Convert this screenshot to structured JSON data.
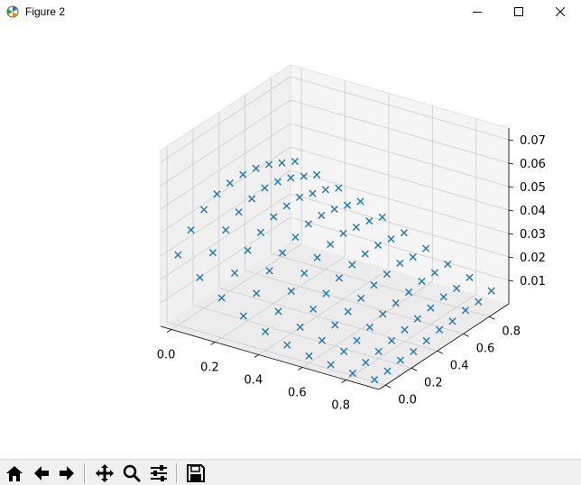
{
  "window": {
    "title": "Figure 2",
    "controls": {
      "minimize": "minimize-icon",
      "maximize": "maximize-icon",
      "close": "close-icon"
    }
  },
  "toolbar": {
    "buttons": [
      {
        "name": "home-button",
        "icon": "home-icon"
      },
      {
        "name": "back-button",
        "icon": "arrow-left-icon"
      },
      {
        "name": "forward-button",
        "icon": "arrow-right-icon"
      },
      {
        "name": "pan-button",
        "icon": "move-icon"
      },
      {
        "name": "zoom-button",
        "icon": "magnifier-icon"
      },
      {
        "name": "configure-subplots-button",
        "icon": "sliders-icon"
      },
      {
        "name": "save-button",
        "icon": "floppy-disk-icon"
      }
    ]
  },
  "colors": {
    "marker": "#1f77b4",
    "pane": "#f2f2f2",
    "grid": "#cccccc"
  },
  "chart_data": {
    "type": "scatter",
    "projection": "3d",
    "marker": "x",
    "grid": true,
    "x_ticks": [
      "0.0",
      "0.2",
      "0.4",
      "0.6",
      "0.8"
    ],
    "y_ticks": [
      "0.0",
      "0.2",
      "0.4",
      "0.6",
      "0.8"
    ],
    "z_ticks": [
      "0.01",
      "0.02",
      "0.03",
      "0.04",
      "0.05",
      "0.06",
      "0.07"
    ],
    "xlim": [
      -0.05,
      0.95
    ],
    "ylim": [
      -0.05,
      0.95
    ],
    "zlim": [
      0.0,
      0.075
    ],
    "points": [
      [
        0.0,
        0.0,
        0.03
      ],
      [
        0.0,
        0.1,
        0.037
      ],
      [
        0.0,
        0.2,
        0.042
      ],
      [
        0.0,
        0.3,
        0.045
      ],
      [
        0.0,
        0.4,
        0.046
      ],
      [
        0.0,
        0.5,
        0.046
      ],
      [
        0.0,
        0.6,
        0.045
      ],
      [
        0.0,
        0.7,
        0.043
      ],
      [
        0.0,
        0.8,
        0.04
      ],
      [
        0.0,
        0.9,
        0.037
      ],
      [
        0.1,
        0.0,
        0.023
      ],
      [
        0.1,
        0.1,
        0.03
      ],
      [
        0.1,
        0.2,
        0.036
      ],
      [
        0.1,
        0.3,
        0.04
      ],
      [
        0.1,
        0.4,
        0.042
      ],
      [
        0.1,
        0.5,
        0.043
      ],
      [
        0.1,
        0.6,
        0.042
      ],
      [
        0.1,
        0.7,
        0.04
      ],
      [
        0.1,
        0.8,
        0.037
      ],
      [
        0.1,
        0.9,
        0.034
      ],
      [
        0.2,
        0.0,
        0.017
      ],
      [
        0.2,
        0.1,
        0.024
      ],
      [
        0.2,
        0.2,
        0.03
      ],
      [
        0.2,
        0.3,
        0.034
      ],
      [
        0.2,
        0.4,
        0.037
      ],
      [
        0.2,
        0.5,
        0.038
      ],
      [
        0.2,
        0.6,
        0.038
      ],
      [
        0.2,
        0.7,
        0.036
      ],
      [
        0.2,
        0.8,
        0.034
      ],
      [
        0.2,
        0.9,
        0.031
      ],
      [
        0.3,
        0.0,
        0.012
      ],
      [
        0.3,
        0.1,
        0.018
      ],
      [
        0.3,
        0.2,
        0.024
      ],
      [
        0.3,
        0.3,
        0.028
      ],
      [
        0.3,
        0.4,
        0.031
      ],
      [
        0.3,
        0.5,
        0.033
      ],
      [
        0.3,
        0.6,
        0.033
      ],
      [
        0.3,
        0.7,
        0.032
      ],
      [
        0.3,
        0.8,
        0.03
      ],
      [
        0.3,
        0.9,
        0.028
      ],
      [
        0.4,
        0.0,
        0.008
      ],
      [
        0.4,
        0.1,
        0.013
      ],
      [
        0.4,
        0.2,
        0.018
      ],
      [
        0.4,
        0.3,
        0.022
      ],
      [
        0.4,
        0.4,
        0.025
      ],
      [
        0.4,
        0.5,
        0.027
      ],
      [
        0.4,
        0.6,
        0.028
      ],
      [
        0.4,
        0.7,
        0.027
      ],
      [
        0.4,
        0.8,
        0.026
      ],
      [
        0.4,
        0.9,
        0.024
      ],
      [
        0.5,
        0.0,
        0.005
      ],
      [
        0.5,
        0.1,
        0.009
      ],
      [
        0.5,
        0.2,
        0.013
      ],
      [
        0.5,
        0.3,
        0.016
      ],
      [
        0.5,
        0.4,
        0.019
      ],
      [
        0.5,
        0.5,
        0.021
      ],
      [
        0.5,
        0.6,
        0.022
      ],
      [
        0.5,
        0.7,
        0.022
      ],
      [
        0.5,
        0.8,
        0.021
      ],
      [
        0.5,
        0.9,
        0.02
      ],
      [
        0.6,
        0.0,
        0.003
      ],
      [
        0.6,
        0.1,
        0.006
      ],
      [
        0.6,
        0.2,
        0.009
      ],
      [
        0.6,
        0.3,
        0.011
      ],
      [
        0.6,
        0.4,
        0.013
      ],
      [
        0.6,
        0.5,
        0.015
      ],
      [
        0.6,
        0.6,
        0.016
      ],
      [
        0.6,
        0.7,
        0.017
      ],
      [
        0.6,
        0.8,
        0.016
      ],
      [
        0.6,
        0.9,
        0.016
      ],
      [
        0.7,
        0.0,
        0.002
      ],
      [
        0.7,
        0.1,
        0.004
      ],
      [
        0.7,
        0.2,
        0.005
      ],
      [
        0.7,
        0.3,
        0.007
      ],
      [
        0.7,
        0.4,
        0.009
      ],
      [
        0.7,
        0.5,
        0.01
      ],
      [
        0.7,
        0.6,
        0.011
      ],
      [
        0.7,
        0.7,
        0.012
      ],
      [
        0.7,
        0.8,
        0.012
      ],
      [
        0.7,
        0.9,
        0.012
      ],
      [
        0.8,
        0.0,
        0.001
      ],
      [
        0.8,
        0.1,
        0.002
      ],
      [
        0.8,
        0.2,
        0.003
      ],
      [
        0.8,
        0.3,
        0.004
      ],
      [
        0.8,
        0.4,
        0.005
      ],
      [
        0.8,
        0.5,
        0.006
      ],
      [
        0.8,
        0.6,
        0.007
      ],
      [
        0.8,
        0.7,
        0.008
      ],
      [
        0.8,
        0.8,
        0.008
      ],
      [
        0.8,
        0.9,
        0.009
      ],
      [
        0.9,
        0.0,
        0.001
      ],
      [
        0.9,
        0.1,
        0.001
      ],
      [
        0.9,
        0.2,
        0.002
      ],
      [
        0.9,
        0.3,
        0.002
      ],
      [
        0.9,
        0.4,
        0.003
      ],
      [
        0.9,
        0.5,
        0.004
      ],
      [
        0.9,
        0.6,
        0.004
      ],
      [
        0.9,
        0.7,
        0.005
      ],
      [
        0.9,
        0.8,
        0.005
      ],
      [
        0.9,
        0.9,
        0.006
      ]
    ]
  }
}
